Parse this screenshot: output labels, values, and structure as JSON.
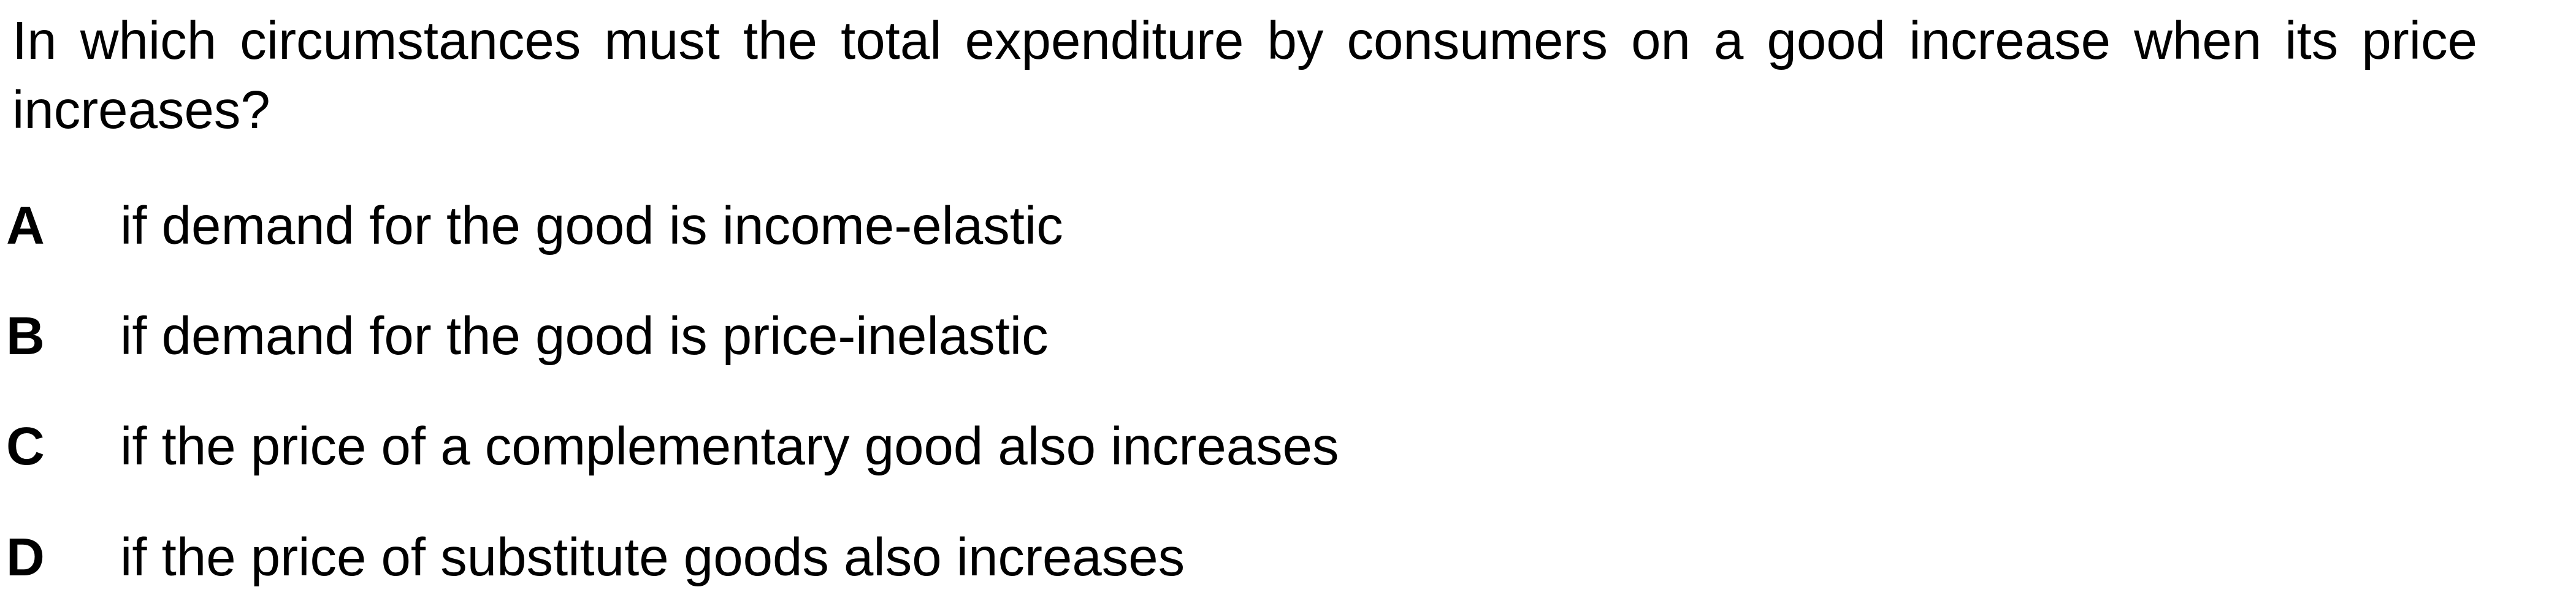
{
  "question": {
    "text": "In which circumstances must the total expenditure by consumers on a good increase when its price increases?"
  },
  "options": [
    {
      "letter": "A",
      "text": "if demand for the good is income-elastic"
    },
    {
      "letter": "B",
      "text": "if demand for the good is price-inelastic"
    },
    {
      "letter": "C",
      "text": "if the price of a complementary good also increases"
    },
    {
      "letter": "D",
      "text": "if the price of substitute goods also increases"
    }
  ]
}
